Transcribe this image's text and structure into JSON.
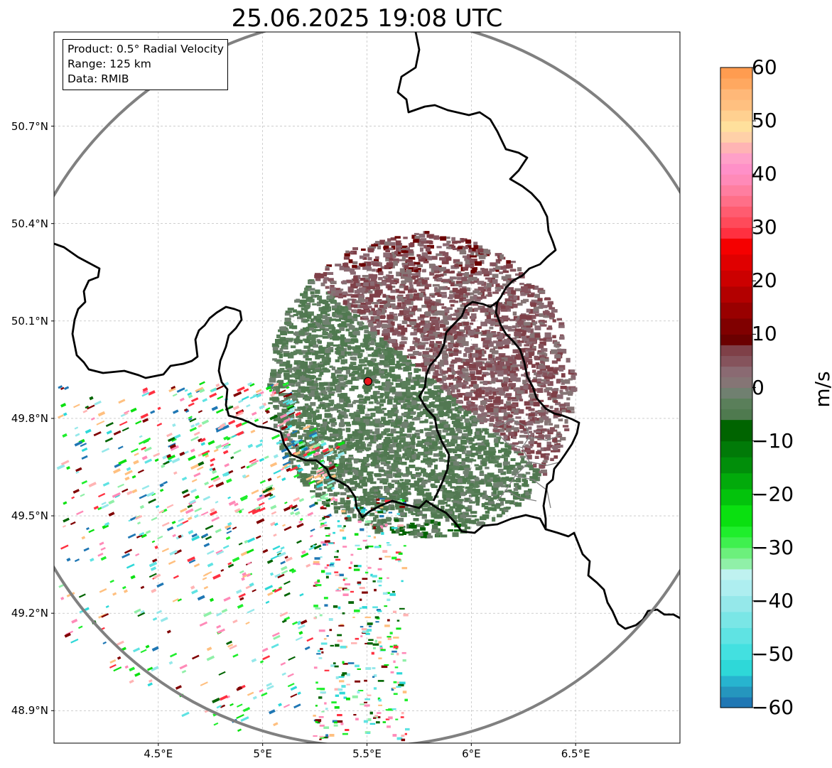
{
  "title": "25.06.2025 19:08 UTC",
  "info_box": {
    "lines": [
      "Product: 0.5° Radial Velocity",
      "Range: 125 km",
      "Data: RMIB"
    ]
  },
  "map": {
    "lon_range": [
      4.0,
      7.0
    ],
    "lat_range": [
      48.8,
      50.99
    ],
    "radar_site": {
      "lon": 5.505,
      "lat": 49.914
    },
    "range_km": 125,
    "grid": true,
    "x_ticks": [
      {
        "value": 4.5,
        "label": "4.5°E"
      },
      {
        "value": 5.0,
        "label": "5°E"
      },
      {
        "value": 5.5,
        "label": "5.5°E"
      },
      {
        "value": 6.0,
        "label": "6°E"
      },
      {
        "value": 6.5,
        "label": "6.5°E"
      }
    ],
    "y_ticks": [
      {
        "value": 50.7,
        "label": "50.7°N"
      },
      {
        "value": 50.4,
        "label": "50.4°N"
      },
      {
        "value": 50.1,
        "label": "50.1°N"
      },
      {
        "value": 49.8,
        "label": "49.8°N"
      },
      {
        "value": 49.5,
        "label": "49.5°N"
      },
      {
        "value": 49.2,
        "label": "49.2°N"
      },
      {
        "value": 48.9,
        "label": "48.9°N"
      }
    ],
    "colors": {
      "range_ring": "#808080",
      "border": "#000000",
      "sub_border": "#808080",
      "site_marker": "#e8161b"
    }
  },
  "colorbar": {
    "unit": "m/s",
    "min": -60,
    "max": 60,
    "tick_labels": [
      "60",
      "50",
      "40",
      "30",
      "20",
      "10",
      "0",
      "−10",
      "−20",
      "−30",
      "−40",
      "−50",
      "−60"
    ],
    "tick_values": [
      60,
      50,
      40,
      30,
      20,
      10,
      0,
      -10,
      -20,
      -30,
      -40,
      -50,
      -60
    ],
    "color_stops": [
      {
        "from": -60,
        "to": -58,
        "color": "#1f77b4"
      },
      {
        "from": -58,
        "to": -56,
        "color": "#2596be"
      },
      {
        "from": -56,
        "to": -54,
        "color": "#27b4cf"
      },
      {
        "from": -54,
        "to": -51,
        "color": "#2ed8d8"
      },
      {
        "from": -51,
        "to": -48,
        "color": "#43e0e0"
      },
      {
        "from": -48,
        "to": -45,
        "color": "#5fe3e3"
      },
      {
        "from": -45,
        "to": -42,
        "color": "#7ae6e6"
      },
      {
        "from": -42,
        "to": -39,
        "color": "#95e8ea"
      },
      {
        "from": -39,
        "to": -36,
        "color": "#aeeef0"
      },
      {
        "from": -36,
        "to": -34,
        "color": "#bff2f0"
      },
      {
        "from": -34,
        "to": -32,
        "color": "#90f0a8"
      },
      {
        "from": -32,
        "to": -30,
        "color": "#6cf07c"
      },
      {
        "from": -30,
        "to": -28,
        "color": "#3ff04f"
      },
      {
        "from": -28,
        "to": -26,
        "color": "#1fee2c"
      },
      {
        "from": -26,
        "to": -22,
        "color": "#0ae010"
      },
      {
        "from": -22,
        "to": -19,
        "color": "#03c30c"
      },
      {
        "from": -19,
        "to": -16,
        "color": "#02aa0b"
      },
      {
        "from": -16,
        "to": -13,
        "color": "#018e0a"
      },
      {
        "from": -13,
        "to": -10,
        "color": "#017a08"
      },
      {
        "from": -10,
        "to": -6,
        "color": "#006400"
      },
      {
        "from": -6,
        "to": -4,
        "color": "#4f7a4f"
      },
      {
        "from": -4,
        "to": -2,
        "color": "#5a7f5a"
      },
      {
        "from": -2,
        "to": 0,
        "color": "#708070"
      },
      {
        "from": 0,
        "to": 2,
        "color": "#857575"
      },
      {
        "from": 2,
        "to": 4,
        "color": "#8a6a72"
      },
      {
        "from": 4,
        "to": 6,
        "color": "#85535c"
      },
      {
        "from": 6,
        "to": 8,
        "color": "#7f4048"
      },
      {
        "from": 8,
        "to": 10,
        "color": "#6b0000"
      },
      {
        "from": 10,
        "to": 13,
        "color": "#800000"
      },
      {
        "from": 13,
        "to": 16,
        "color": "#990000"
      },
      {
        "from": 16,
        "to": 19,
        "color": "#b30000"
      },
      {
        "from": 19,
        "to": 22,
        "color": "#cc0000"
      },
      {
        "from": 22,
        "to": 25,
        "color": "#e00000"
      },
      {
        "from": 25,
        "to": 28,
        "color": "#f50000"
      },
      {
        "from": 28,
        "to": 30,
        "color": "#ff3040"
      },
      {
        "from": 30,
        "to": 32,
        "color": "#ff4a5a"
      },
      {
        "from": 32,
        "to": 34,
        "color": "#ff5c70"
      },
      {
        "from": 34,
        "to": 36,
        "color": "#ff6f88"
      },
      {
        "from": 36,
        "to": 38,
        "color": "#ff7ea0"
      },
      {
        "from": 38,
        "to": 40,
        "color": "#ff8ab8"
      },
      {
        "from": 40,
        "to": 42,
        "color": "#ff90c8"
      },
      {
        "from": 42,
        "to": 44,
        "color": "#ffa0c8"
      },
      {
        "from": 44,
        "to": 46,
        "color": "#ffb4b4"
      },
      {
        "from": 46,
        "to": 48,
        "color": "#ffd0a8"
      },
      {
        "from": 48,
        "to": 50,
        "color": "#ffe09c"
      },
      {
        "from": 50,
        "to": 52,
        "color": "#ffd090"
      },
      {
        "from": 52,
        "to": 54,
        "color": "#ffc080"
      },
      {
        "from": 54,
        "to": 56,
        "color": "#ffb878"
      },
      {
        "from": 56,
        "to": 58,
        "color": "#ffa860"
      },
      {
        "from": 58,
        "to": 60,
        "color": "#ff9c50"
      }
    ]
  }
}
